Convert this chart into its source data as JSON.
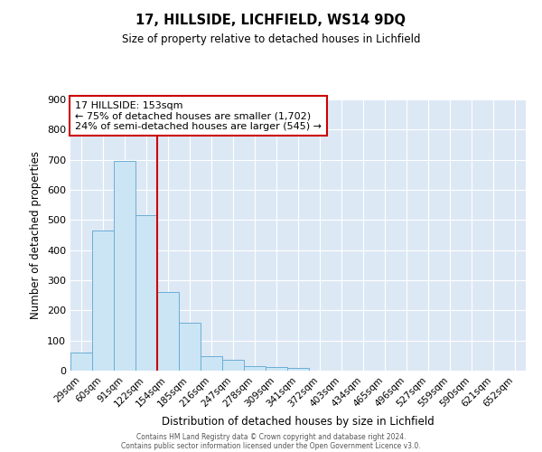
{
  "title": "17, HILLSIDE, LICHFIELD, WS14 9DQ",
  "subtitle": "Size of property relative to detached houses in Lichfield",
  "xlabel": "Distribution of detached houses by size in Lichfield",
  "ylabel": "Number of detached properties",
  "bar_color": "#cce5f5",
  "bar_edge_color": "#6baed6",
  "background_color": "#dde8f5",
  "categories": [
    "29sqm",
    "60sqm",
    "91sqm",
    "122sqm",
    "154sqm",
    "185sqm",
    "216sqm",
    "247sqm",
    "278sqm",
    "309sqm",
    "341sqm",
    "372sqm",
    "403sqm",
    "434sqm",
    "465sqm",
    "496sqm",
    "527sqm",
    "559sqm",
    "590sqm",
    "621sqm",
    "652sqm"
  ],
  "values": [
    60,
    465,
    695,
    515,
    262,
    160,
    48,
    35,
    15,
    13,
    8,
    0,
    0,
    0,
    0,
    0,
    0,
    0,
    0,
    0,
    0
  ],
  "ylim": [
    0,
    900
  ],
  "yticks": [
    0,
    100,
    200,
    300,
    400,
    500,
    600,
    700,
    800,
    900
  ],
  "property_line_color": "#cc0000",
  "property_line_index": 4,
  "annotation_text": "17 HILLSIDE: 153sqm\n← 75% of detached houses are smaller (1,702)\n24% of semi-detached houses are larger (545) →",
  "annotation_box_color": "#ffffff",
  "annotation_box_edge_color": "#cc0000",
  "footer_line1": "Contains HM Land Registry data © Crown copyright and database right 2024.",
  "footer_line2": "Contains public sector information licensed under the Open Government Licence v3.0."
}
